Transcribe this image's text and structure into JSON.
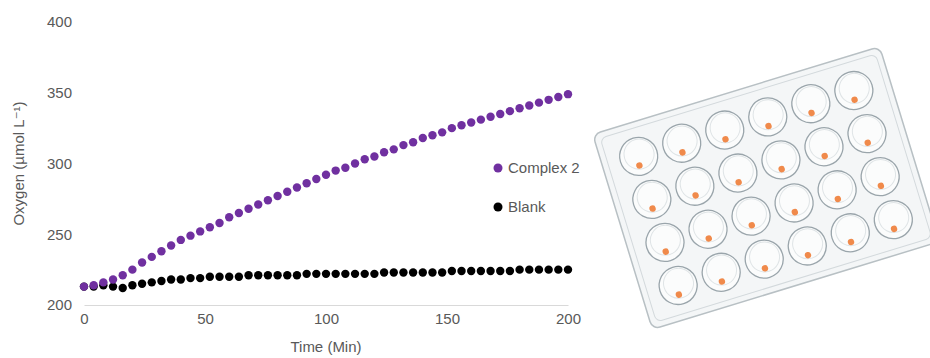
{
  "chart_data": {
    "type": "scatter",
    "x_label": "Time (Min)",
    "y_label": "Oxygen (µmol L⁻¹)",
    "x": [
      0,
      4,
      8,
      12,
      16,
      20,
      24,
      28,
      32,
      36,
      40,
      44,
      48,
      52,
      56,
      60,
      64,
      68,
      72,
      76,
      80,
      84,
      88,
      92,
      96,
      100,
      104,
      108,
      112,
      116,
      120,
      124,
      128,
      132,
      136,
      140,
      144,
      148,
      152,
      156,
      160,
      164,
      168,
      172,
      176,
      180,
      184,
      188,
      192,
      196,
      200
    ],
    "series": [
      {
        "name": "Complex 2",
        "color": "#7030a0",
        "marker": "circle",
        "values": [
          213,
          214,
          216,
          218,
          221,
          225,
          230,
          234,
          238,
          242,
          246,
          249,
          252,
          255,
          258,
          262,
          265,
          268,
          271,
          274,
          277,
          280,
          283,
          286,
          289,
          292,
          295,
          297,
          300,
          303,
          305,
          308,
          310,
          313,
          315,
          318,
          320,
          322,
          325,
          327,
          329,
          331,
          333,
          335,
          337,
          339,
          341,
          343,
          345,
          347,
          349
        ]
      },
      {
        "name": "Blank",
        "color": "#000000",
        "marker": "circle",
        "values": [
          213,
          213,
          214,
          213,
          212,
          214,
          215,
          216,
          217,
          218,
          218,
          219,
          219,
          220,
          220,
          220,
          220,
          221,
          221,
          221,
          221,
          221,
          221,
          222,
          222,
          222,
          222,
          222,
          222,
          222,
          222,
          223,
          223,
          223,
          223,
          223,
          223,
          223,
          224,
          224,
          224,
          224,
          224,
          224,
          224,
          225,
          225,
          225,
          225,
          225,
          225
        ]
      }
    ],
    "xlim": [
      0,
      200
    ],
    "xticks": [
      0,
      50,
      100,
      150,
      200
    ],
    "ylim": [
      200,
      400
    ],
    "yticks": [
      200,
      250,
      300,
      350,
      400
    ],
    "grid": false,
    "legend": "right"
  }
}
